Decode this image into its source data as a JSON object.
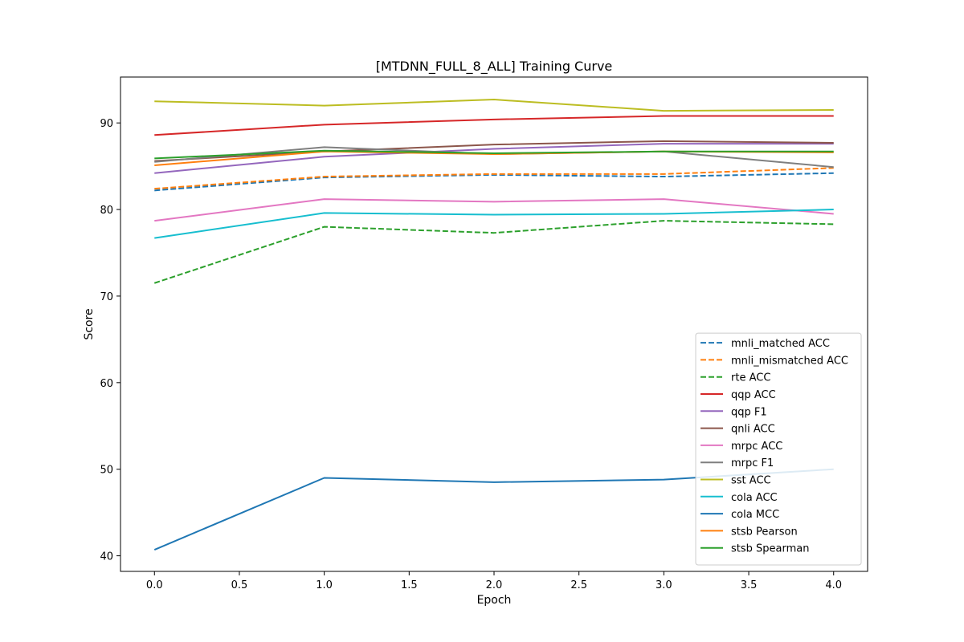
{
  "chart_data": {
    "type": "line",
    "title": "[MTDNN_FULL_8_ALL] Training Curve",
    "xlabel": "Epoch",
    "ylabel": "Score",
    "xlim": [
      -0.2,
      4.2
    ],
    "ylim": [
      38.2,
      95.3
    ],
    "x_ticks": [
      0.0,
      0.5,
      1.0,
      1.5,
      2.0,
      2.5,
      3.0,
      3.5,
      4.0
    ],
    "x_tick_labels": [
      "0.0",
      "0.5",
      "1.0",
      "1.5",
      "2.0",
      "2.5",
      "3.0",
      "3.5",
      "4.0"
    ],
    "y_ticks": [
      40,
      50,
      60,
      70,
      80,
      90
    ],
    "y_tick_labels": [
      "40",
      "50",
      "60",
      "70",
      "80",
      "90"
    ],
    "grid": false,
    "legend_position": "bottom-right",
    "x": [
      0,
      1,
      2,
      3,
      4
    ],
    "series": [
      {
        "name": "mnli_matched ACC",
        "color": "#1f77b4",
        "dash": "dashed",
        "values": [
          82.2,
          83.7,
          84.0,
          83.8,
          84.2
        ]
      },
      {
        "name": "mnli_mismatched ACC",
        "color": "#ff7f0e",
        "dash": "dashed",
        "values": [
          82.4,
          83.8,
          84.1,
          84.1,
          84.8
        ]
      },
      {
        "name": "rte ACC",
        "color": "#2ca02c",
        "dash": "dashed",
        "values": [
          71.5,
          78.0,
          77.3,
          78.7,
          78.3
        ]
      },
      {
        "name": "qqp ACC",
        "color": "#d62728",
        "dash": "solid",
        "values": [
          88.6,
          89.8,
          90.4,
          90.8,
          90.8
        ]
      },
      {
        "name": "qqp F1",
        "color": "#9467bd",
        "dash": "solid",
        "values": [
          84.2,
          86.1,
          87.0,
          87.6,
          87.6
        ]
      },
      {
        "name": "qnli ACC",
        "color": "#8c564b",
        "dash": "solid",
        "values": [
          85.6,
          86.7,
          87.5,
          87.9,
          87.7
        ]
      },
      {
        "name": "mrpc ACC",
        "color": "#e377c2",
        "dash": "solid",
        "values": [
          78.7,
          81.2,
          80.9,
          81.2,
          79.5
        ]
      },
      {
        "name": "mrpc F1",
        "color": "#7f7f7f",
        "dash": "solid",
        "values": [
          85.5,
          87.2,
          86.4,
          86.7,
          84.9
        ]
      },
      {
        "name": "sst ACC",
        "color": "#bcbd22",
        "dash": "solid",
        "values": [
          92.5,
          92.0,
          92.7,
          91.4,
          91.5
        ]
      },
      {
        "name": "cola ACC",
        "color": "#17becf",
        "dash": "solid",
        "values": [
          76.7,
          79.6,
          79.4,
          79.5,
          80.0
        ]
      },
      {
        "name": "cola MCC",
        "color": "#1f77b4",
        "dash": "solid",
        "values": [
          40.7,
          49.0,
          48.5,
          48.8,
          50.0
        ]
      },
      {
        "name": "stsb Pearson",
        "color": "#ff7f0e",
        "dash": "solid",
        "values": [
          85.1,
          86.7,
          86.4,
          86.7,
          86.6
        ]
      },
      {
        "name": "stsb Spearman",
        "color": "#2ca02c",
        "dash": "solid",
        "values": [
          85.9,
          86.8,
          86.5,
          86.7,
          86.7
        ]
      }
    ]
  }
}
